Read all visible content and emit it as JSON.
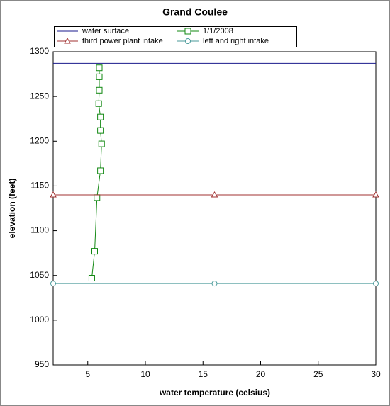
{
  "chart_data": {
    "type": "line",
    "title": "Grand Coulee",
    "xlabel": "water temperature (celsius)",
    "ylabel": "elevation (feet)",
    "xlim": [
      2,
      30
    ],
    "ylim": [
      950,
      1300
    ],
    "xticks": [
      5,
      10,
      15,
      20,
      25,
      30
    ],
    "yticks": [
      950,
      1000,
      1050,
      1100,
      1150,
      1200,
      1250,
      1300
    ],
    "series": [
      {
        "name": "water surface",
        "color": "#1a1a8c",
        "marker": "none",
        "x": [
          2,
          30
        ],
        "values": [
          1287,
          1287
        ]
      },
      {
        "name": "1/1/2008",
        "color": "#118811",
        "marker": "square",
        "x": [
          6.0,
          6.0,
          6.0,
          5.95,
          6.1,
          6.1,
          6.2,
          6.1,
          5.8,
          5.6,
          5.35
        ],
        "values": [
          1282,
          1272,
          1257,
          1242,
          1227,
          1212,
          1197,
          1167,
          1137,
          1077,
          1047
        ]
      },
      {
        "name": "third  power plant intake",
        "color": "#a03030",
        "marker": "triangle",
        "x": [
          2,
          16,
          30
        ],
        "values": [
          1140,
          1140,
          1140
        ]
      },
      {
        "name": "left and right intake",
        "color": "#4a9a9a",
        "marker": "circle",
        "x": [
          2,
          16,
          30
        ],
        "values": [
          1041,
          1041,
          1041
        ]
      }
    ]
  }
}
